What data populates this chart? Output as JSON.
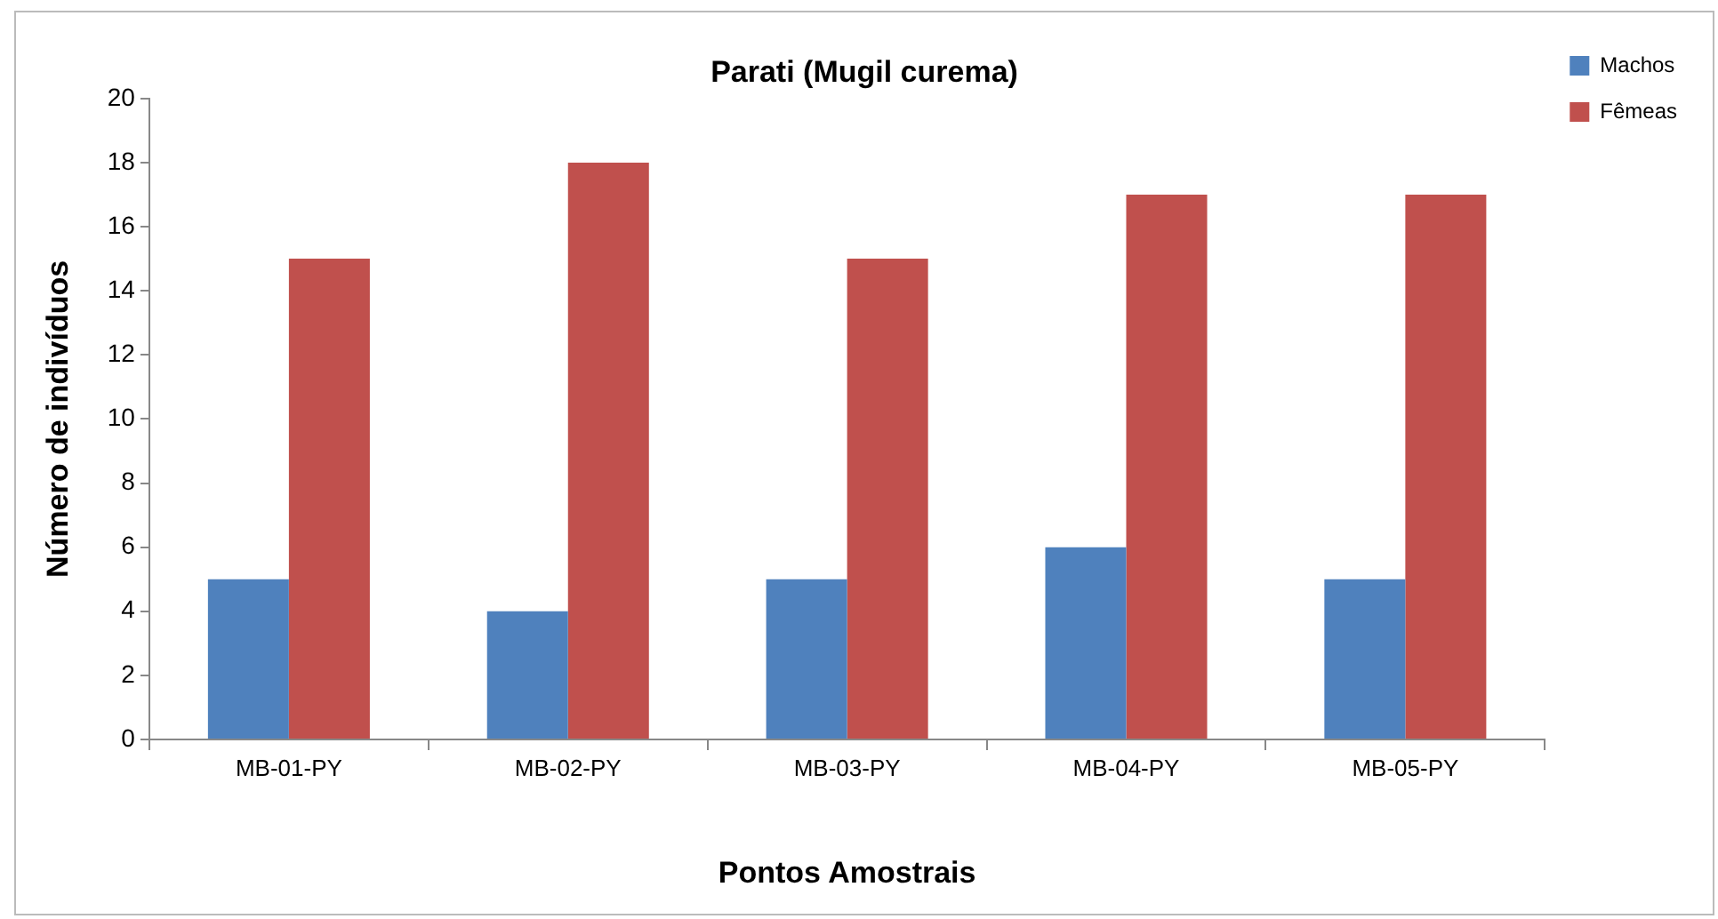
{
  "chart_data": {
    "type": "bar",
    "title": "Parati (Mugil curema)",
    "xlabel": "Pontos Amostrais",
    "ylabel": "Número de indivíduos",
    "categories": [
      "MB-01-PY",
      "MB-02-PY",
      "MB-03-PY",
      "MB-04-PY",
      "MB-05-PY"
    ],
    "series": [
      {
        "name": "Machos",
        "color": "#4f81bd",
        "values": [
          5,
          4,
          5,
          6,
          5
        ]
      },
      {
        "name": "Fêmeas",
        "color": "#c0504d",
        "values": [
          15,
          18,
          15,
          17,
          17
        ]
      }
    ],
    "ylim": [
      0,
      20
    ],
    "yticks": [
      0,
      2,
      4,
      6,
      8,
      10,
      12,
      14,
      16,
      18,
      20
    ],
    "grid": false,
    "legend": "top right"
  }
}
